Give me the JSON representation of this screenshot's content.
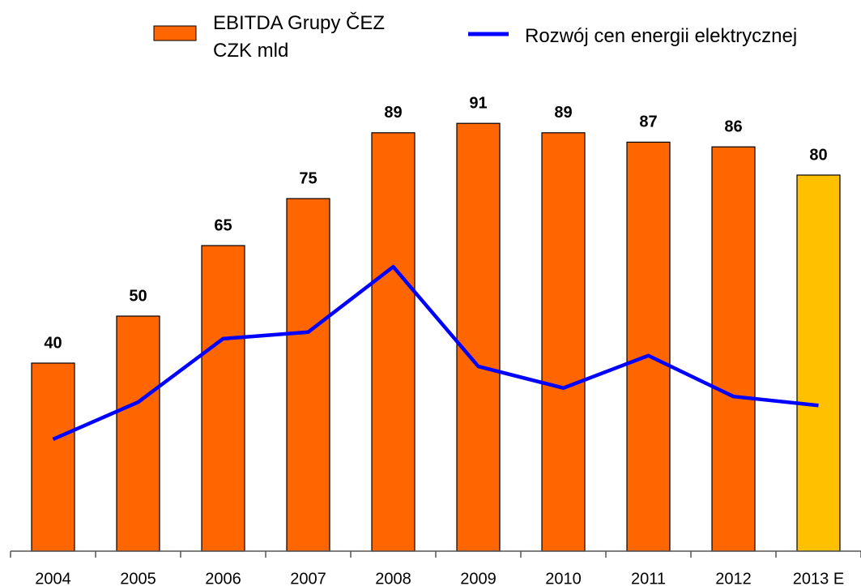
{
  "chart_data": {
    "type": "bar_line",
    "categories": [
      "2004",
      "2005",
      "2006",
      "2007",
      "2008",
      "2009",
      "2010",
      "2011",
      "2012",
      "2013 E"
    ],
    "series": [
      {
        "name": "EBITDA Grupy ČEZ\nCZK mld",
        "type": "bar",
        "color": "#ff6600",
        "colors": [
          "#ff6600",
          "#ff6600",
          "#ff6600",
          "#ff6600",
          "#ff6600",
          "#ff6600",
          "#ff6600",
          "#ff6600",
          "#ff6600",
          "#ffc000"
        ],
        "values": [
          40,
          50,
          65,
          75,
          89,
          91,
          89,
          87,
          86,
          80
        ]
      },
      {
        "name": "Rozwój cen energii elektrycznej",
        "type": "line",
        "color": "#0000ff",
        "values": [
          23.8,
          31.7,
          45.2,
          46.6,
          60.5,
          39.3,
          34.7,
          41.6,
          32.9,
          31.0
        ]
      }
    ],
    "ylim": [
      0,
      100
    ],
    "legend": "top"
  }
}
